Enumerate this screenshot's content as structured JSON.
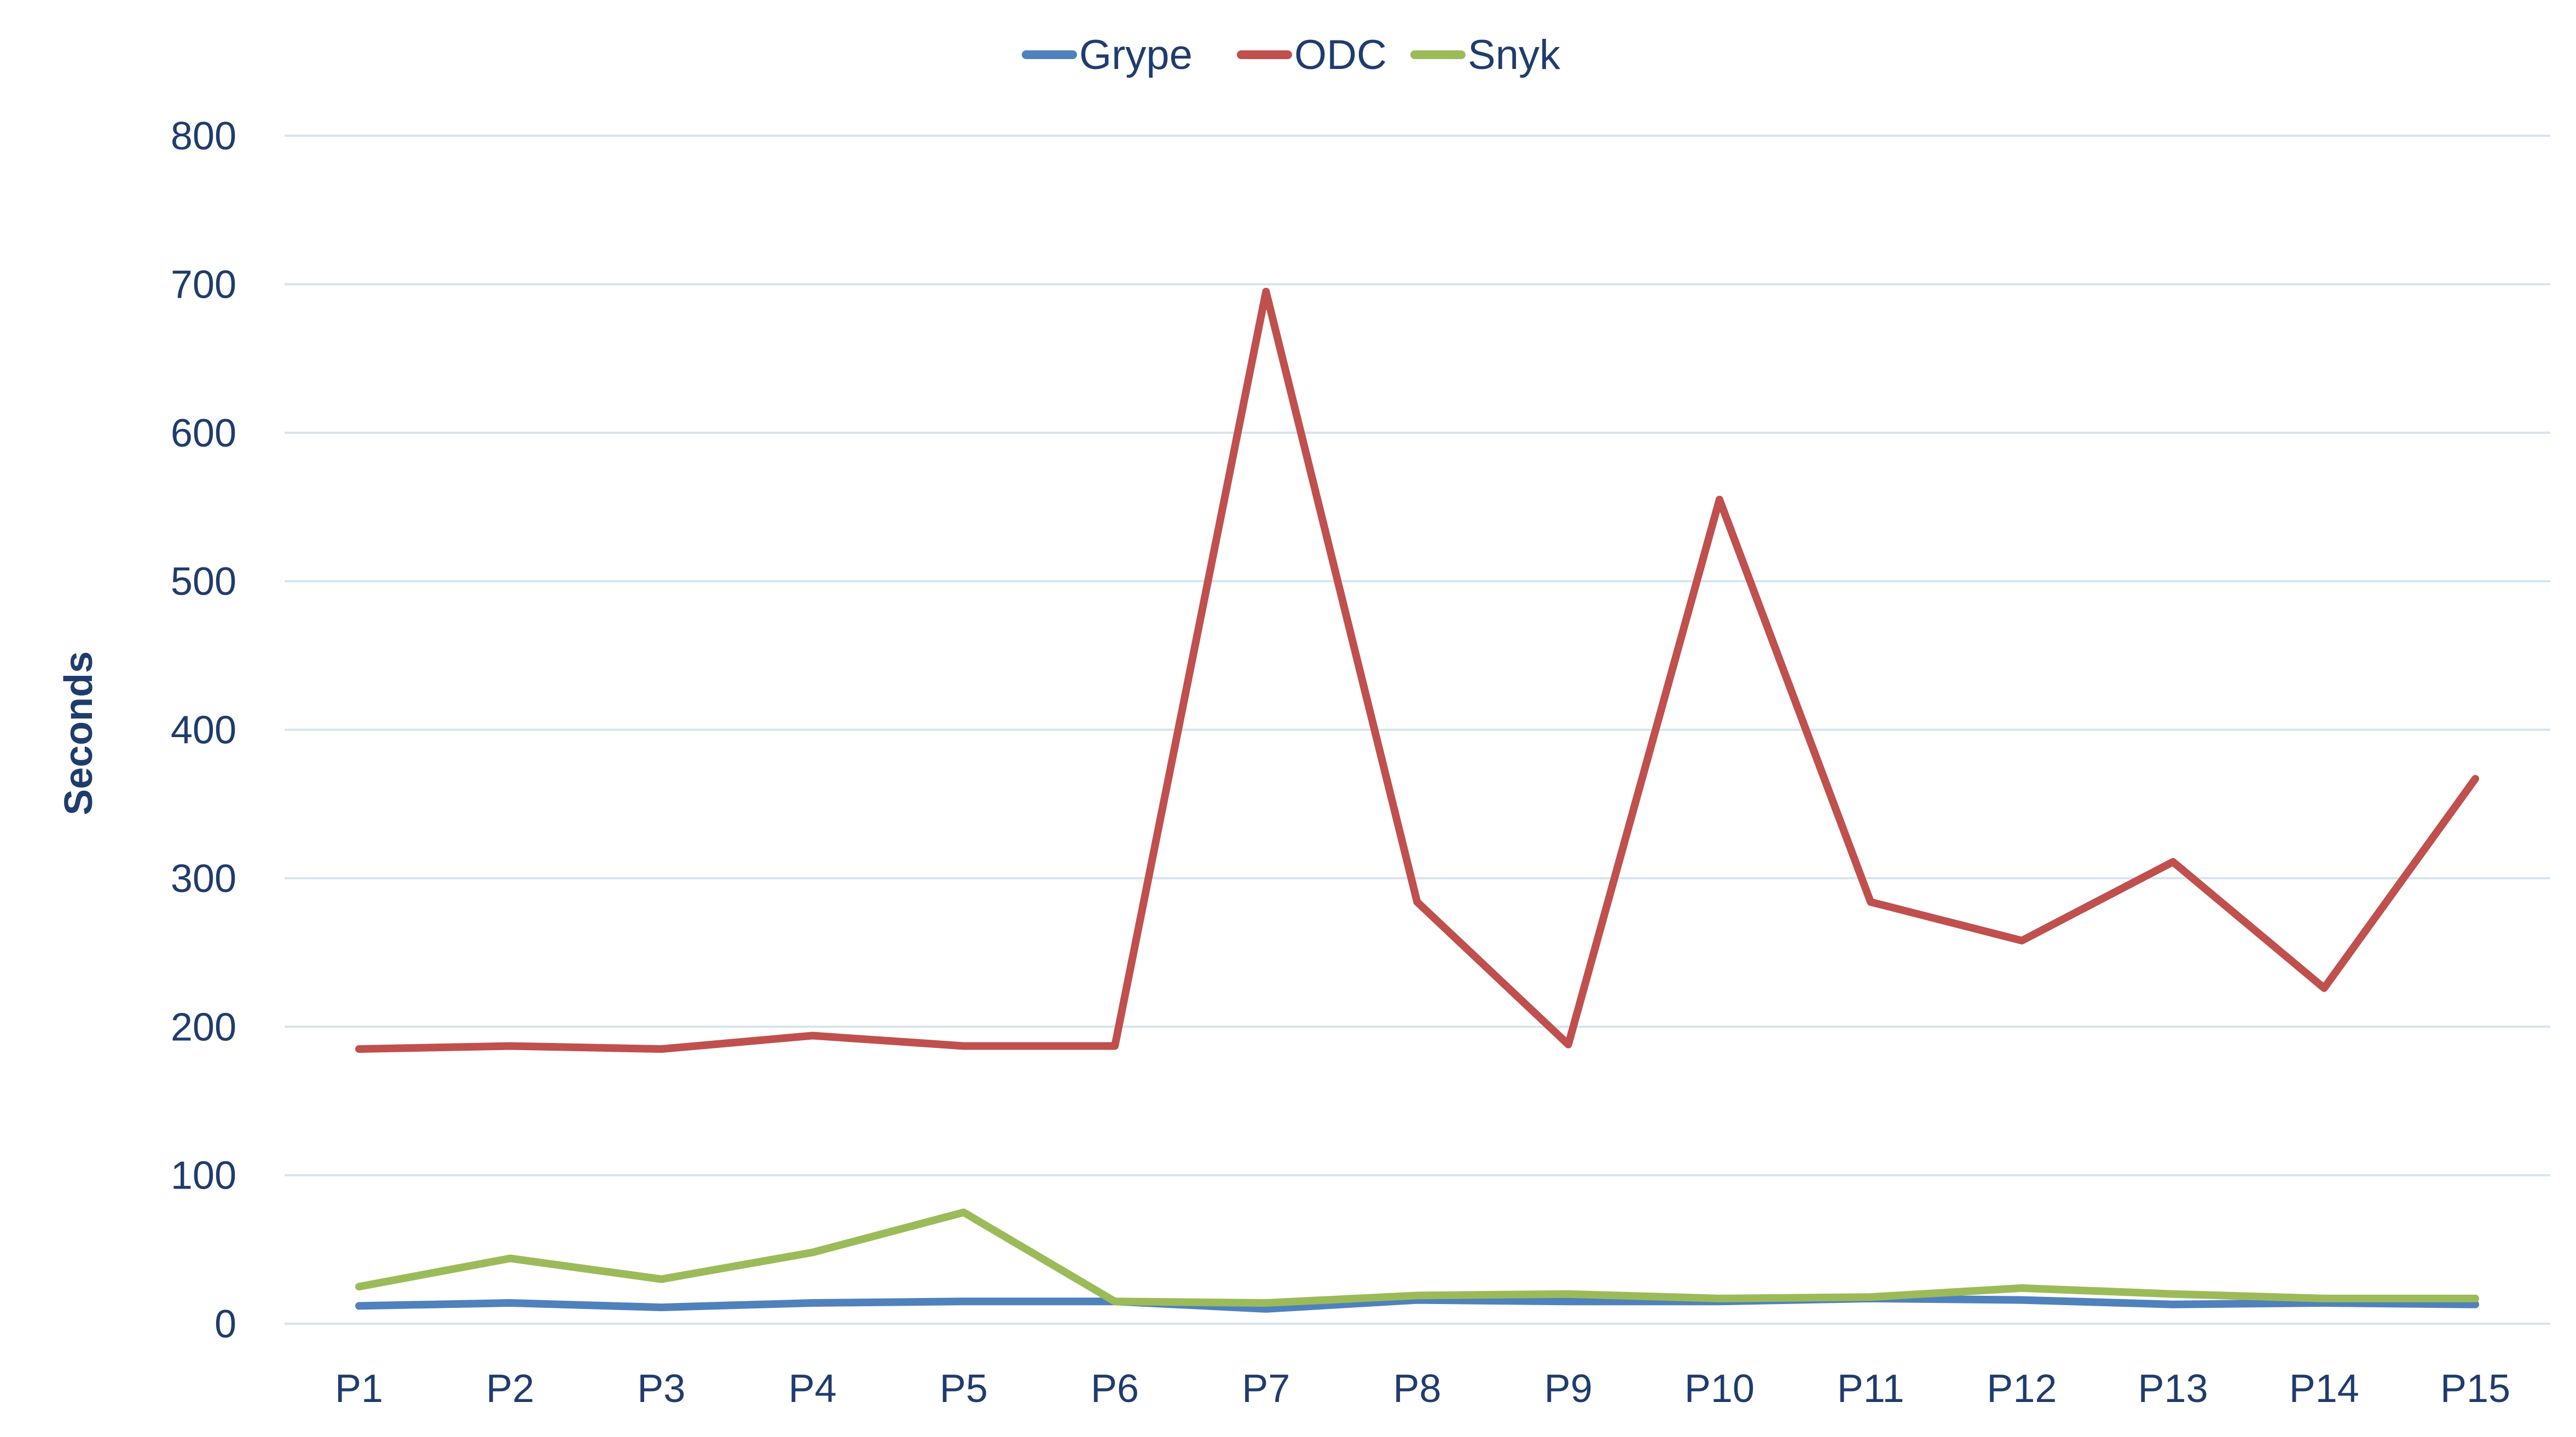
{
  "chart_data": {
    "type": "line",
    "title": "",
    "xlabel": "",
    "ylabel": "Seconds",
    "categories": [
      "P1",
      "P2",
      "P3",
      "P4",
      "P5",
      "P6",
      "P7",
      "P8",
      "P9",
      "P10",
      "P11",
      "P12",
      "P13",
      "P14",
      "P15"
    ],
    "ylim": [
      0,
      800
    ],
    "yticks": [
      0,
      100,
      200,
      300,
      400,
      500,
      600,
      700,
      800
    ],
    "grid": true,
    "legend_position": "top-center",
    "series": [
      {
        "name": "Grype",
        "color": "#4f81bd",
        "values": [
          12,
          14,
          11,
          14,
          15,
          15,
          10,
          16,
          15,
          15,
          17,
          16,
          13,
          14,
          13
        ]
      },
      {
        "name": "ODC",
        "color": "#c0504d",
        "values": [
          185,
          187,
          185,
          194,
          187,
          187,
          695,
          284,
          188,
          555,
          284,
          258,
          311,
          226,
          367
        ]
      },
      {
        "name": "Snyk",
        "color": "#9bbb59",
        "values": [
          25,
          44,
          30,
          48,
          75,
          15,
          14,
          19,
          20,
          17,
          18,
          24,
          20,
          17,
          17
        ]
      }
    ]
  }
}
